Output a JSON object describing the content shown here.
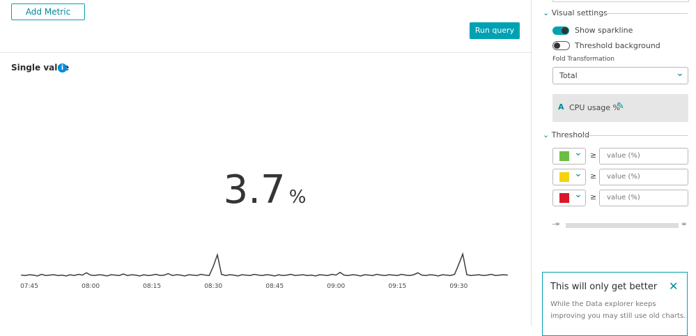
{
  "query": {
    "add_metric": "Add Metric",
    "run_query": "Run query"
  },
  "single_value": {
    "title": "Single value",
    "value": 3.7,
    "unit": "%",
    "sparkline": {
      "type": "line",
      "color": "#3a3a3a",
      "x": [
        -2,
        -1,
        0,
        1,
        2,
        3,
        4,
        5,
        6,
        7,
        8,
        9,
        10,
        11,
        12,
        13,
        14,
        15,
        16,
        17,
        18,
        19,
        20,
        21,
        22,
        23,
        24,
        25,
        26,
        27,
        28,
        29,
        30,
        31,
        32,
        33,
        34,
        35,
        36,
        37,
        38,
        39,
        40,
        41,
        42,
        43,
        44,
        45,
        46,
        47,
        48,
        49,
        50,
        51,
        52,
        53,
        54,
        55,
        56,
        57,
        58,
        59,
        60,
        61,
        62,
        63,
        64,
        65,
        66,
        67,
        68,
        69,
        70,
        71,
        72,
        73,
        74,
        75,
        76,
        77,
        78,
        79,
        80,
        81,
        82,
        83,
        84,
        85,
        86,
        87,
        88,
        89,
        90,
        91,
        92,
        93,
        94,
        95,
        96,
        97,
        98,
        99,
        100,
        101,
        102,
        103,
        104,
        105,
        106,
        107,
        108,
        109,
        110,
        111,
        112,
        113,
        114,
        115,
        116,
        117
      ],
      "values": [
        3.7,
        3.6,
        3.8,
        3.7,
        3.5,
        3.9,
        3.6,
        3.7,
        3.8,
        3.6,
        3.7,
        3.5,
        3.8,
        3.6,
        3.9,
        3.7,
        4.3,
        3.7,
        3.6,
        3.8,
        3.7,
        3.5,
        3.8,
        3.7,
        3.6,
        4.0,
        3.6,
        3.8,
        3.7,
        3.5,
        3.8,
        3.6,
        3.7,
        3.9,
        3.6,
        3.7,
        4.1,
        3.6,
        3.8,
        3.7,
        3.5,
        3.8,
        3.7,
        3.6,
        3.9,
        3.7,
        3.6,
        6.0,
        9.0,
        3.9,
        3.6,
        3.8,
        3.7,
        3.5,
        3.8,
        3.7,
        3.6,
        3.9,
        3.7,
        3.6,
        3.8,
        3.7,
        3.5,
        3.8,
        3.6,
        3.7,
        3.9,
        3.6,
        3.7,
        3.8,
        3.6,
        3.7,
        3.5,
        3.8,
        3.7,
        3.6,
        3.9,
        3.7,
        4.4,
        3.7,
        3.6,
        3.8,
        3.7,
        3.5,
        3.8,
        3.7,
        3.6,
        3.9,
        3.7,
        3.6,
        3.8,
        3.7,
        3.6,
        3.9,
        3.7,
        3.6,
        3.8,
        4.3,
        3.7,
        3.6,
        3.8,
        3.7,
        3.5,
        3.8,
        3.7,
        3.6,
        3.9,
        6.5,
        9.2,
        3.8,
        3.6,
        3.7,
        3.8,
        3.6,
        3.7,
        3.9,
        3.6,
        3.7,
        3.8,
        3.7
      ],
      "xlim": [
        -2,
        117
      ],
      "ylim": [
        0,
        10
      ],
      "xticks": [
        {
          "value": 0,
          "label": "07:45"
        },
        {
          "value": 15,
          "label": "08:00"
        },
        {
          "value": 30,
          "label": "08:15"
        },
        {
          "value": 45,
          "label": "08:30"
        },
        {
          "value": 60,
          "label": "08:45"
        },
        {
          "value": 75,
          "label": "09:00"
        },
        {
          "value": 90,
          "label": "09:15"
        },
        {
          "value": 105,
          "label": "09:30"
        }
      ]
    }
  },
  "settings": {
    "visual_settings": "Visual settings",
    "show_sparkline": "Show sparkline",
    "threshold_background": "Threshold background",
    "fold_transformation": "Fold Transformation",
    "fold_value": "Total",
    "metric_label": "CPU usage %",
    "threshold": "Threshold",
    "threshold_rows": [
      {
        "color": "#6cbd45",
        "operator": "≥",
        "placeholder": "value (%)"
      },
      {
        "color": "#f5d30f",
        "operator": "≥",
        "placeholder": "value (%)"
      },
      {
        "color": "#dc172a",
        "operator": "≥",
        "placeholder": "value (%)"
      }
    ],
    "range_min": "-∞",
    "range_max": "∞"
  },
  "info": {
    "title": "This will only get better",
    "lines": [
      "While the Data explorer keeps",
      "improving you may still use old charts."
    ]
  }
}
